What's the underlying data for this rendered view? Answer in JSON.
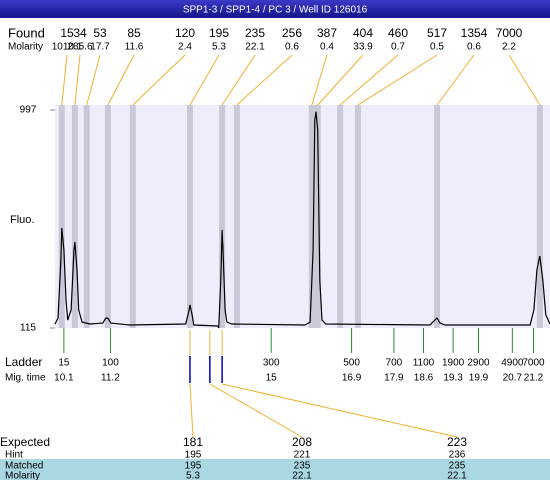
{
  "chart_data": {
    "type": "line",
    "title": "SPP1-3 / SPP1-4 / PC 3 / Well ID 126016",
    "y_label": "Fluo.",
    "ylim": [
      115,
      997
    ],
    "yticks": [
      115,
      997
    ],
    "xlim": [
      9.89,
      21.59
    ],
    "color": "#000000",
    "x": [
      9.89,
      9.96,
      10.03,
      10.05,
      10.1,
      10.15,
      10.19,
      10.27,
      10.34,
      10.36,
      10.41,
      10.45,
      10.53,
      10.71,
      11.02,
      11.09,
      11.14,
      11.21,
      11.66,
      12.98,
      13.05,
      13.08,
      13.13,
      13.17,
      13.74,
      13.76,
      13.81,
      13.84,
      13.86,
      13.91,
      13.95,
      14.07,
      15.8,
      15.92,
      15.99,
      16.03,
      16.06,
      16.1,
      16.15,
      16.2,
      16.29,
      18.75,
      18.87,
      18.92,
      18.99,
      19.11,
      21.12,
      21.21,
      21.28,
      21.35,
      21.42,
      21.49,
      21.59
    ],
    "values": [
      131,
      155,
      390,
      520,
      431,
      228,
      147,
      188,
      431,
      463,
      350,
      188,
      139,
      131,
      135,
      155,
      155,
      135,
      127,
      131,
      180,
      208,
      168,
      127,
      123,
      115,
      309,
      512,
      431,
      188,
      139,
      131,
      127,
      139,
      431,
      957,
      990,
      916,
      309,
      147,
      131,
      127,
      147,
      155,
      135,
      127,
      127,
      188,
      350,
      406,
      309,
      168,
      131
    ],
    "found": {
      "label": "Found",
      "sizes": [
        15,
        34,
        53,
        85,
        120,
        195,
        235,
        256,
        387,
        404,
        460,
        517,
        1354,
        7000
      ],
      "molarity_label": "Molarity",
      "molarity": [
        1010.1,
        285.6,
        17.7,
        11.6,
        2.4,
        5.3,
        22.1,
        0.6,
        0.4,
        33.9,
        0.7,
        0.5,
        0.6,
        2.2
      ],
      "x": [
        10.05,
        10.36,
        10.64,
        11.14,
        11.73,
        13.08,
        13.84,
        14.19,
        15.96,
        16.1,
        16.63,
        17.05,
        18.92,
        21.35
      ]
    },
    "ladder": {
      "label": "Ladder",
      "mig_label": "Mig. time",
      "sizes": [
        15,
        100,
        300,
        500,
        700,
        1100,
        1900,
        2900,
        4900,
        7000
      ],
      "mig_times": [
        10.1,
        11.2,
        15,
        16.9,
        17.9,
        18.6,
        19.3,
        19.9,
        20.7,
        21.2
      ]
    },
    "expected": {
      "label": "Expected",
      "values": [
        181,
        208,
        223
      ],
      "x": [
        13.08,
        13.55,
        13.84
      ],
      "rows": [
        {
          "label": "Hint",
          "values": [
            195,
            221,
            236
          ]
        },
        {
          "label": "Matched",
          "values": [
            195,
            235,
            235
          ]
        },
        {
          "label": "Molarity",
          "values": [
            5.3,
            22.1,
            22.1
          ]
        }
      ]
    }
  }
}
